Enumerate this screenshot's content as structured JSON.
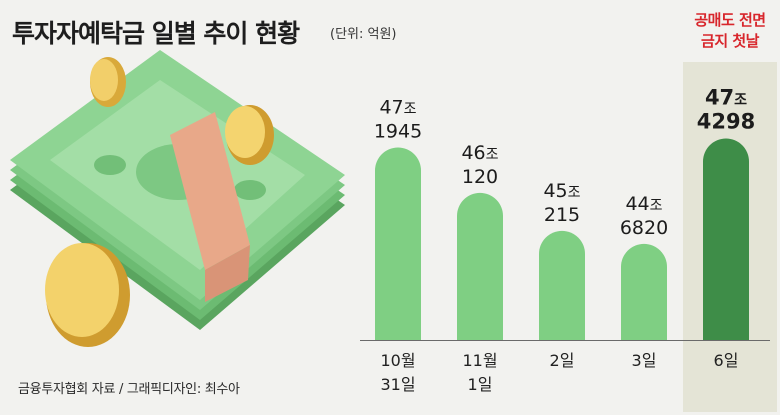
{
  "title": "투자자예탁금 일별 추이 현황",
  "unit": "(단위: 억원)",
  "source": "금융투자협회 자료 / 그래픽디자인: 최수아",
  "annotation": {
    "line1": "공매도 전면",
    "line2": "금지 첫날"
  },
  "colors": {
    "bar_light": "#7fcf83",
    "bar_dark": "#3e8d48",
    "highlight_bg": "#e4e4d6",
    "annotation": "#d8262c"
  },
  "chart_data": {
    "type": "bar",
    "unit": "억원",
    "categories": [
      [
        "10월",
        "31일"
      ],
      [
        "11월",
        "1일"
      ],
      [
        "2일"
      ],
      [
        "3일"
      ],
      [
        "6일"
      ]
    ],
    "values": [
      471945,
      460120,
      450215,
      446820,
      474298
    ],
    "value_labels": [
      [
        "47조",
        "1945"
      ],
      [
        "46조",
        "120"
      ],
      [
        "45조",
        "215"
      ],
      [
        "44조",
        "6820"
      ],
      [
        "47조",
        "4298"
      ]
    ],
    "highlight_index": 4
  }
}
